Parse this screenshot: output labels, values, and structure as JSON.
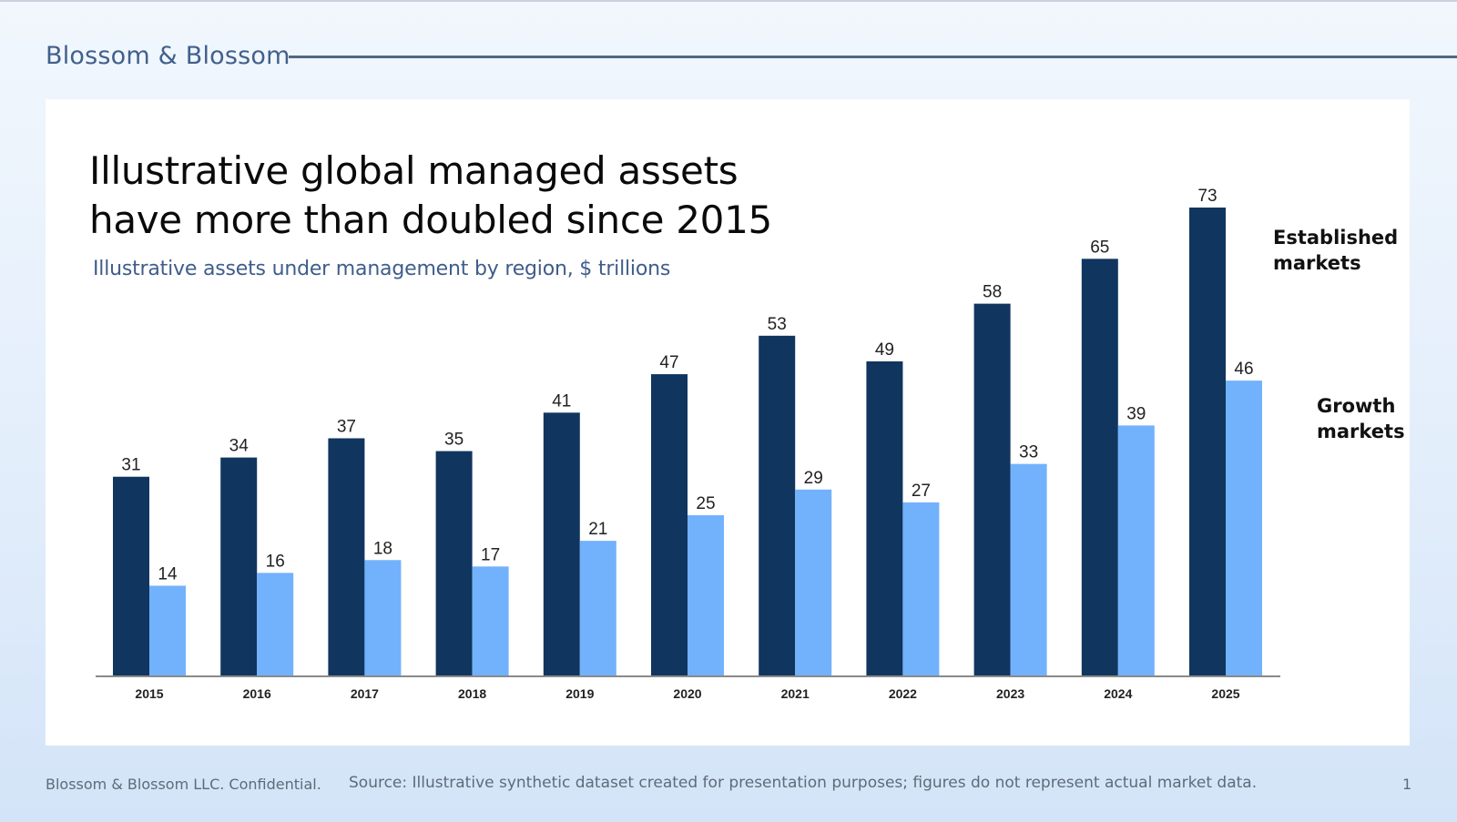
{
  "header": {
    "brand": "Blossom & Blossom"
  },
  "chart_data": {
    "type": "bar",
    "title_lines": [
      "Illustrative global managed assets",
      "have more than doubled since 2015"
    ],
    "subtitle": "Illustrative assets under management by region, $ trillions",
    "categories": [
      "2015",
      "2016",
      "2017",
      "2018",
      "2019",
      "2020",
      "2021",
      "2022",
      "2023",
      "2024",
      "2025"
    ],
    "series": [
      {
        "name": "Established markets",
        "label_lines": [
          "Established",
          "markets"
        ],
        "color": "#10355f",
        "values": [
          31,
          34,
          37,
          35,
          41,
          47,
          53,
          49,
          58,
          65,
          73
        ]
      },
      {
        "name": "Growth markets",
        "label_lines": [
          "Growth",
          "markets"
        ],
        "color": "#72b2fc",
        "values": [
          14,
          16,
          18,
          17,
          21,
          25,
          29,
          27,
          33,
          39,
          46
        ]
      }
    ],
    "ylim": [
      0,
      73
    ],
    "grid": false,
    "legend": "right, direct labels"
  },
  "footer": {
    "confidential": "Blossom & Blossom LLC. Confidential.",
    "source": "Source: Illustrative synthetic dataset created for presentation purposes; figures do not represent actual market data.",
    "page": "1"
  }
}
